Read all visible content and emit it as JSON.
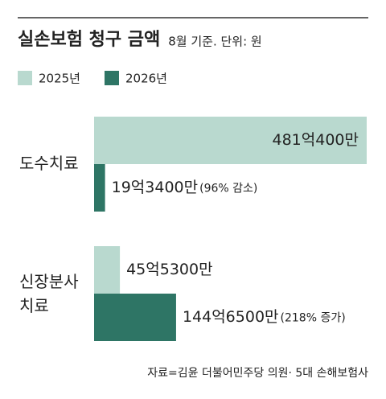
{
  "chart_data": {
    "type": "hbar",
    "title": "실손보험 청구 금액",
    "subtitle": "8월 기준. 단위: 원",
    "source": "자료=김윤 더불어민주당 의원· 5대 손해보험사",
    "categories": [
      "도수치료",
      "신장분사\n치료"
    ],
    "series": [
      {
        "name": "2025년",
        "color": "#b9d9cf",
        "values": [
          4810400,
          455300
        ],
        "value_labels": [
          "481억400만",
          "45억5300만"
        ]
      },
      {
        "name": "2026년",
        "color": "#2e7565",
        "values": [
          193400,
          1446500
        ],
        "value_labels": [
          "19억3400만",
          "144억6500만"
        ],
        "change_labels": [
          "(96% 감소)",
          "(218% 증가)"
        ]
      }
    ],
    "xlim": [
      0,
      4810400
    ]
  }
}
